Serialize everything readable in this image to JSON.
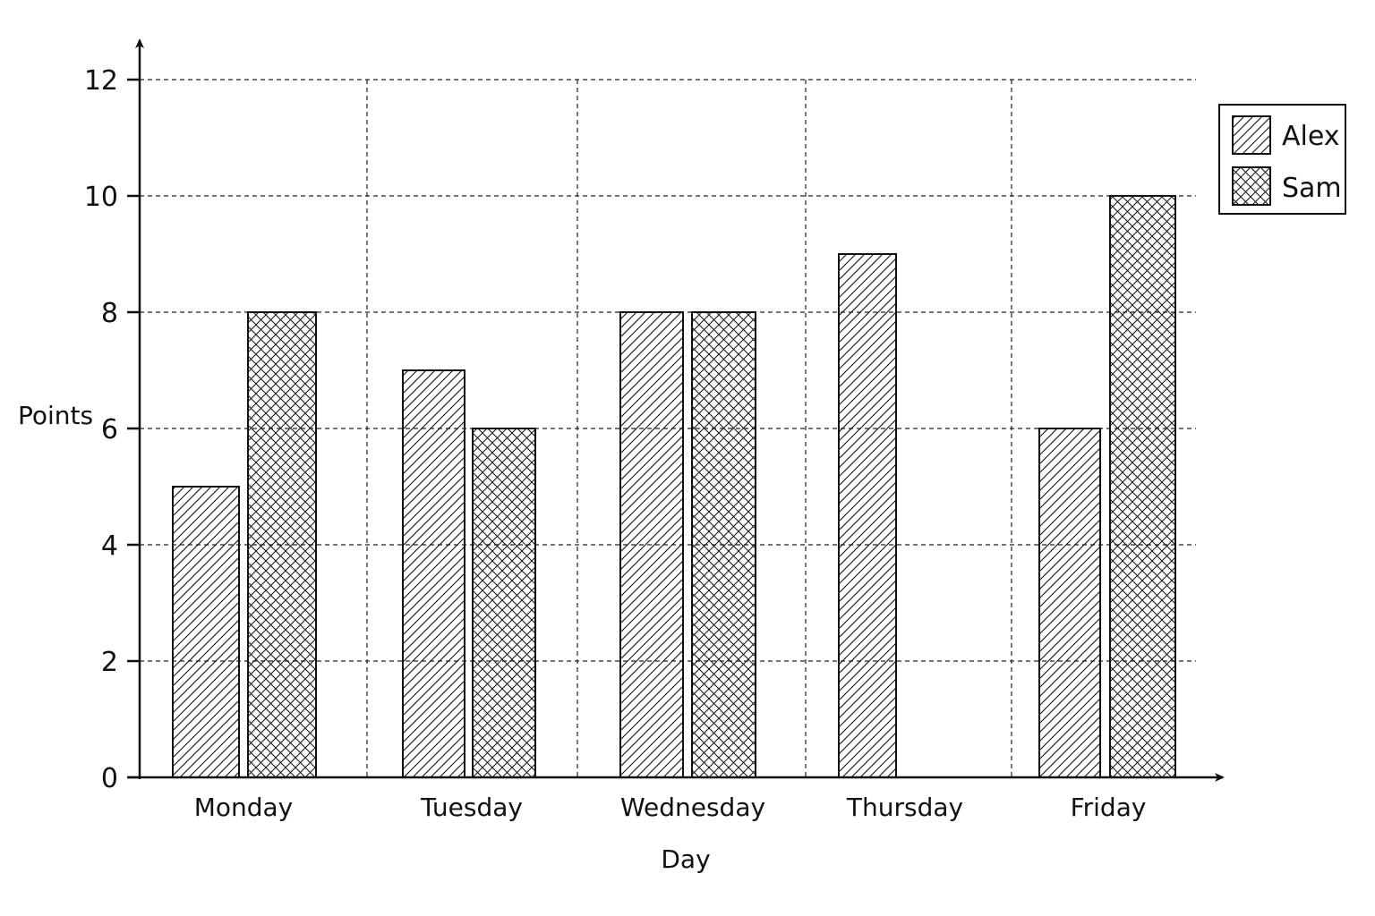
{
  "chart_data": {
    "type": "bar",
    "title": "",
    "xlabel": "Day",
    "ylabel": "Points",
    "categories": [
      "Monday",
      "Tuesday",
      "Wednesday",
      "Thursday",
      "Friday"
    ],
    "series": [
      {
        "name": "Alex",
        "pattern": "diagonal-hatch",
        "values": [
          5,
          7,
          8,
          9,
          6
        ]
      },
      {
        "name": "Sam",
        "pattern": "cross-hatch",
        "values": [
          8,
          6,
          8,
          null,
          10
        ]
      }
    ],
    "ylim": [
      0,
      12
    ],
    "yticks": [
      0,
      2,
      4,
      6,
      8,
      10,
      12
    ],
    "grid": true,
    "legend_position": "top-right",
    "colors": {
      "ink": "#111111",
      "background": "#ffffff"
    }
  }
}
